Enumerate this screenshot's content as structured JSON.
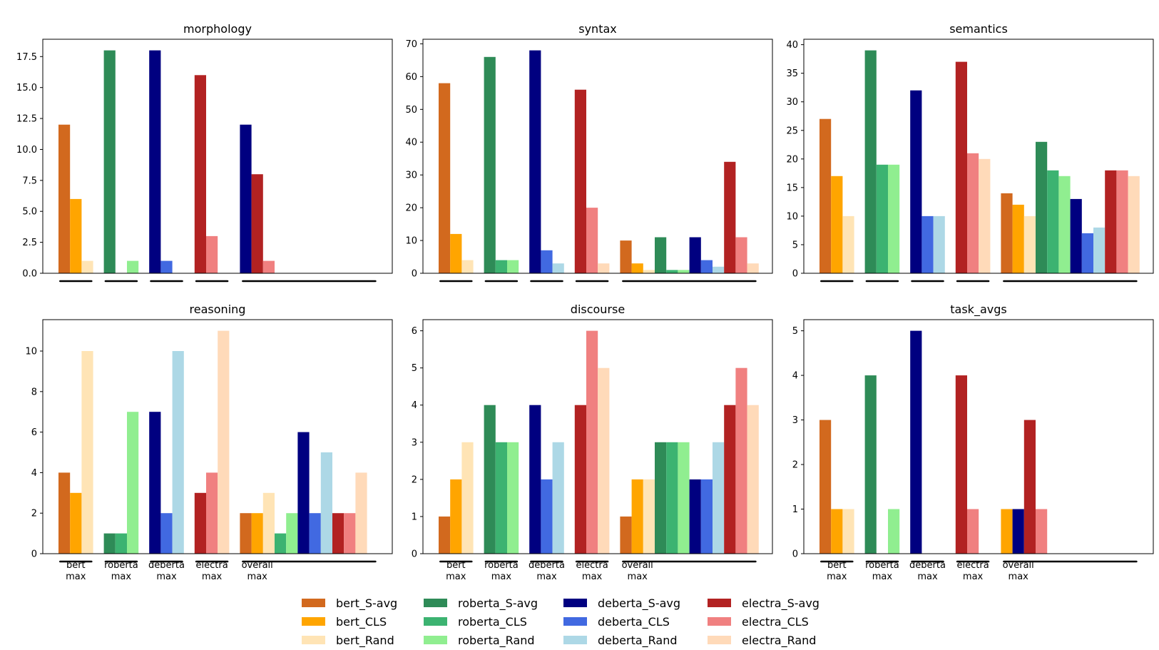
{
  "legend": [
    {
      "label": "bert_S-avg",
      "color": "#d2691e"
    },
    {
      "label": "bert_CLS",
      "color": "#ffa500"
    },
    {
      "label": "bert_Rand",
      "color": "#ffe4b5"
    },
    {
      "label": "roberta_S-avg",
      "color": "#2e8b57"
    },
    {
      "label": "roberta_CLS",
      "color": "#3cb371"
    },
    {
      "label": "roberta_Rand",
      "color": "#90ee90"
    },
    {
      "label": "deberta_S-avg",
      "color": "#000080"
    },
    {
      "label": "deberta_CLS",
      "color": "#4169e1"
    },
    {
      "label": "deberta_Rand",
      "color": "#add8e6"
    },
    {
      "label": "electra_S-avg",
      "color": "#b22222"
    },
    {
      "label": "electra_CLS",
      "color": "#f08080"
    },
    {
      "label": "electra_Rand",
      "color": "#ffdab9"
    }
  ],
  "group_labels": [
    "bert\nmax",
    "roberta\nmax",
    "deberta\nmax",
    "electra\nmax",
    "overall\nmax"
  ],
  "chart_data": [
    {
      "type": "bar",
      "title": "morphology",
      "ylim": [
        0,
        18.9
      ],
      "yticks": [
        "0.0",
        "2.5",
        "5.0",
        "7.5",
        "10.0",
        "12.5",
        "15.0",
        "17.5"
      ],
      "show_xlabels": false,
      "groups": [
        [
          12,
          6,
          1
        ],
        [
          18,
          0,
          1
        ],
        [
          18,
          1,
          0
        ],
        [
          16,
          3,
          0
        ],
        [
          12,
          8,
          1
        ]
      ],
      "group_series": [
        [
          "bert_S-avg",
          "bert_CLS",
          "bert_Rand"
        ],
        [
          "roberta_S-avg",
          "roberta_CLS",
          "roberta_Rand"
        ],
        [
          "deberta_S-avg",
          "deberta_CLS",
          "deberta_Rand"
        ],
        [
          "electra_S-avg",
          "electra_CLS",
          "electra_Rand"
        ],
        [
          "deberta_S-avg",
          "electra_S-avg",
          "electra_CLS"
        ]
      ]
    },
    {
      "type": "bar",
      "title": "syntax",
      "ylim": [
        0,
        71.4
      ],
      "yticks": [
        "0",
        "10",
        "20",
        "30",
        "40",
        "50",
        "60",
        "70"
      ],
      "show_xlabels": false,
      "groups": [
        [
          58,
          12,
          4
        ],
        [
          66,
          4,
          4
        ],
        [
          68,
          7,
          3
        ],
        [
          56,
          20,
          3
        ],
        [
          10,
          3,
          1,
          11,
          1,
          1,
          11,
          4,
          2,
          34,
          11,
          3
        ]
      ]
    },
    {
      "type": "bar",
      "title": "semantics",
      "ylim": [
        0,
        40.95
      ],
      "yticks": [
        "0",
        "5",
        "10",
        "15",
        "20",
        "25",
        "30",
        "35",
        "40"
      ],
      "show_xlabels": false,
      "groups": [
        [
          27,
          17,
          10
        ],
        [
          39,
          19,
          19
        ],
        [
          32,
          10,
          10
        ],
        [
          37,
          21,
          20
        ],
        [
          14,
          12,
          10,
          23,
          18,
          17,
          13,
          7,
          8,
          18,
          18,
          17
        ]
      ]
    },
    {
      "type": "bar",
      "title": "reasoning",
      "ylim": [
        0,
        11.55
      ],
      "yticks": [
        "0",
        "2",
        "4",
        "6",
        "8",
        "10"
      ],
      "show_xlabels": true,
      "groups": [
        [
          4,
          3,
          10
        ],
        [
          1,
          1,
          7
        ],
        [
          7,
          2,
          10
        ],
        [
          3,
          4,
          11
        ],
        [
          2,
          2,
          3,
          1,
          2,
          6,
          2,
          5,
          2,
          2,
          4
        ]
      ],
      "group_series": [
        null,
        null,
        null,
        null,
        [
          "bert_S-avg",
          "bert_CLS",
          "bert_Rand",
          "roberta_CLS",
          "roberta_Rand",
          "deberta_S-avg",
          "deberta_CLS",
          "deberta_Rand",
          "electra_S-avg",
          "electra_CLS",
          "electra_Rand"
        ]
      ]
    },
    {
      "type": "bar",
      "title": "discourse",
      "ylim": [
        0,
        6.3
      ],
      "yticks": [
        "0",
        "1",
        "2",
        "3",
        "4",
        "5",
        "6"
      ],
      "show_xlabels": true,
      "groups": [
        [
          1,
          2,
          3
        ],
        [
          4,
          3,
          3
        ],
        [
          4,
          2,
          3
        ],
        [
          4,
          6,
          5
        ],
        [
          1,
          2,
          2,
          3,
          3,
          3,
          2,
          2,
          3,
          4,
          5,
          4
        ]
      ]
    },
    {
      "type": "bar",
      "title": "task_avgs",
      "ylim": [
        0,
        5.25
      ],
      "yticks": [
        "0",
        "1",
        "2",
        "3",
        "4",
        "5"
      ],
      "show_xlabels": true,
      "groups": [
        [
          3,
          1,
          1
        ],
        [
          4,
          0,
          1
        ],
        [
          5,
          0,
          0
        ],
        [
          4,
          1,
          0
        ],
        [
          1,
          1,
          3,
          1
        ]
      ],
      "group_series": [
        null,
        null,
        null,
        null,
        [
          "bert_CLS",
          "deberta_S-avg",
          "electra_S-avg",
          "electra_CLS"
        ]
      ]
    }
  ]
}
